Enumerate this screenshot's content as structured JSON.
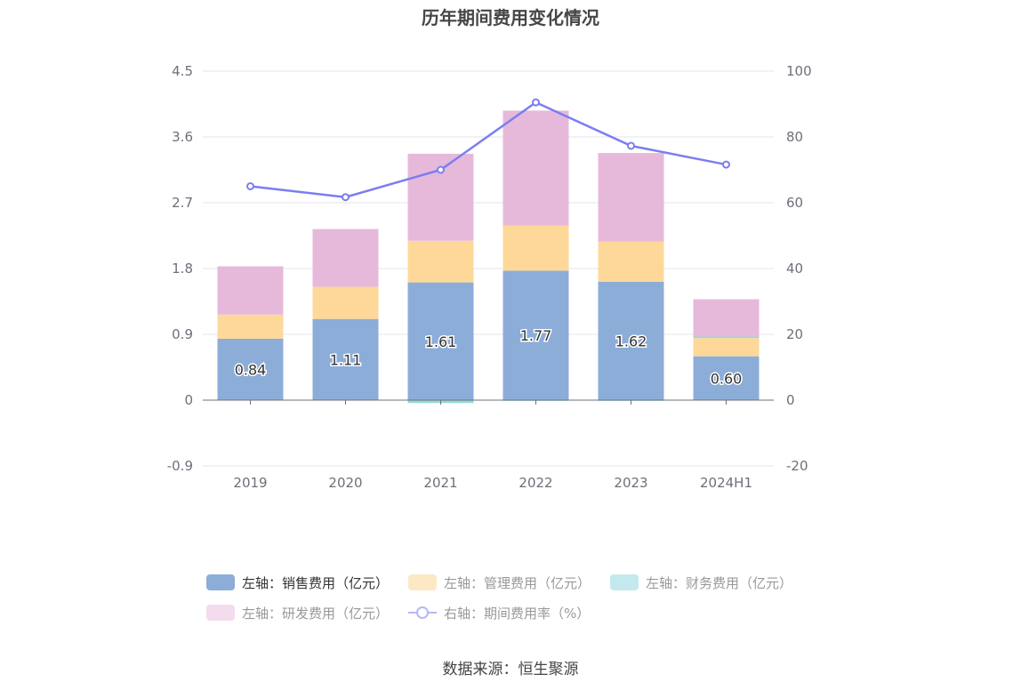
{
  "title": "历年期间费用变化情况",
  "source": "数据来源：恒生聚源",
  "chart_data": {
    "type": "bar",
    "stacked": true,
    "categories": [
      "2019",
      "2020",
      "2021",
      "2022",
      "2023",
      "2024H1"
    ],
    "left_axis": {
      "ticks": [
        "-0.9",
        "0",
        "0.9",
        "1.8",
        "2.7",
        "3.6",
        "4.5"
      ],
      "range": [
        -0.9,
        4.5
      ]
    },
    "right_axis": {
      "ticks": [
        "-20",
        "0",
        "20",
        "40",
        "60",
        "80",
        "100"
      ],
      "range": [
        -20,
        100
      ]
    },
    "grid": true,
    "legend_position": "bottom",
    "series": [
      {
        "name": "左轴：销售费用（亿元）",
        "axis": "left",
        "color": "#8dadd9",
        "values": [
          0.84,
          1.11,
          1.61,
          1.77,
          1.62,
          0.6
        ],
        "labels": [
          "0.84",
          "1.11",
          "1.61",
          "1.77",
          "1.62",
          "0.60"
        ]
      },
      {
        "name": "左轴：管理费用（亿元）",
        "axis": "left",
        "color": "#fdd899",
        "values": [
          0.33,
          0.44,
          0.57,
          0.62,
          0.55,
          0.25
        ]
      },
      {
        "name": "左轴：财务费用（亿元）",
        "axis": "left",
        "color": "#93dad8",
        "values": [
          0.0,
          0.0,
          -0.04,
          -0.01,
          -0.01,
          0.02
        ]
      },
      {
        "name": "左轴：研发费用（亿元）",
        "axis": "left",
        "color": "#e6b9db",
        "values": [
          0.66,
          0.79,
          1.19,
          1.57,
          1.21,
          0.51
        ]
      },
      {
        "name": "右轴：期间费用率（%）",
        "axis": "right",
        "type": "line",
        "color": "#7b7ef0",
        "values": [
          65.0,
          61.7,
          70.0,
          90.5,
          77.3,
          71.6
        ]
      }
    ]
  },
  "legend_colors": {
    "sales": "#8dadd9",
    "admin": "#fde8c6",
    "finance": "#c3e9ec",
    "rd": "#f3dcee"
  }
}
